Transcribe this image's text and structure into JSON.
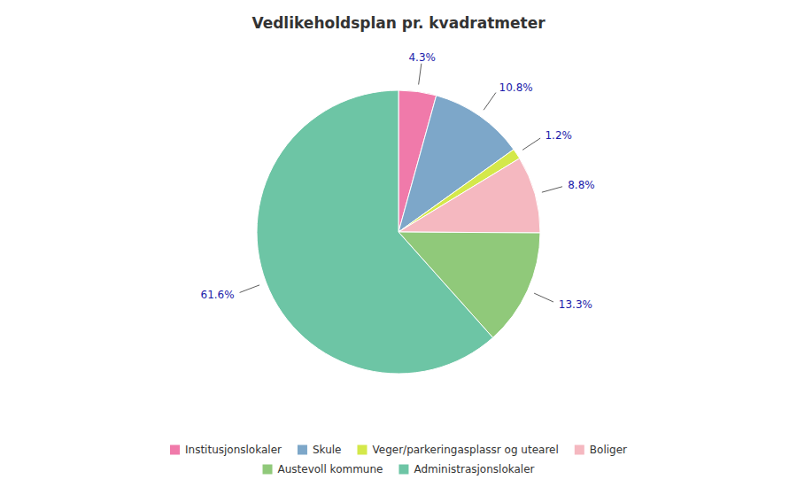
{
  "chart_data": {
    "type": "pie",
    "title": "Vedlikeholdsplan pr. kvadratmeter",
    "categories": [
      "Institusjonslokaler",
      "Skule",
      "Veger/parkeringasplassr og utearel",
      "Boliger",
      "Austevoll kommune",
      "Administrasjonslokaler"
    ],
    "values": [
      4.3,
      10.8,
      1.2,
      8.8,
      13.3,
      61.6
    ],
    "value_labels": [
      "4.3%",
      "10.8%",
      "1.2%",
      "8.8%",
      "13.3%",
      "61.6%"
    ],
    "colors": [
      "#f07aaa",
      "#7da7c9",
      "#d4e84a",
      "#f5b8c0",
      "#90c97a",
      "#6dc5a5"
    ],
    "data_labels": true,
    "legend": "bottom"
  }
}
